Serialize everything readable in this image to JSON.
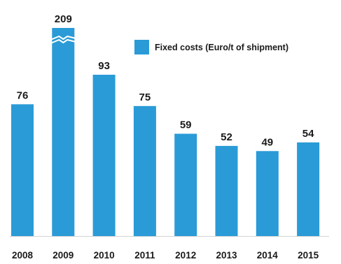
{
  "chart_data": {
    "type": "bar",
    "categories": [
      "2008",
      "2009",
      "2010",
      "2011",
      "2012",
      "2013",
      "2014",
      "2015"
    ],
    "series": [
      {
        "name": "Fixed costs (Euro/t of shipment)",
        "values": [
          76,
          209,
          93,
          75,
          59,
          52,
          49,
          54
        ]
      }
    ],
    "ylim": [
      0,
      120
    ],
    "axis_break": {
      "category": "2009",
      "note": "bar value exceeds axis range; broken bar"
    },
    "title": "",
    "xlabel": "",
    "ylabel": "",
    "grid": false,
    "legend_position": "top-right",
    "colors": {
      "bar": "#2a9bd7",
      "text": "#1a1a1a",
      "axis": "#888888"
    }
  }
}
